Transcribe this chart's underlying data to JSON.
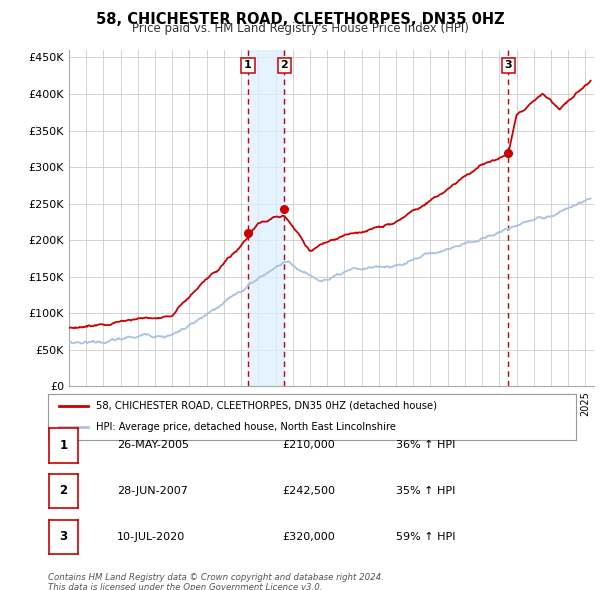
{
  "title": "58, CHICHESTER ROAD, CLEETHORPES, DN35 0HZ",
  "subtitle": "Price paid vs. HM Land Registry's House Price Index (HPI)",
  "ylabel_ticks": [
    "£0",
    "£50K",
    "£100K",
    "£150K",
    "£200K",
    "£250K",
    "£300K",
    "£350K",
    "£400K",
    "£450K"
  ],
  "ytick_values": [
    0,
    50000,
    100000,
    150000,
    200000,
    250000,
    300000,
    350000,
    400000,
    450000
  ],
  "ylim": [
    0,
    460000
  ],
  "xlim_start": 1995.0,
  "xlim_end": 2025.5,
  "background_color": "#ffffff",
  "plot_bg_color": "#ffffff",
  "grid_color": "#cccccc",
  "sale_color": "#cc0000",
  "hpi_color": "#aac4dd",
  "sale_label": "58, CHICHESTER ROAD, CLEETHORPES, DN35 0HZ (detached house)",
  "hpi_label": "HPI: Average price, detached house, North East Lincolnshire",
  "transactions": [
    {
      "num": 1,
      "date": "26-MAY-2005",
      "price": 210000,
      "price_str": "£210,000",
      "pct": "36%",
      "dir": "↑",
      "year": 2005.4
    },
    {
      "num": 2,
      "date": "28-JUN-2007",
      "price": 242500,
      "price_str": "£242,500",
      "pct": "35%",
      "dir": "↑",
      "year": 2007.5
    },
    {
      "num": 3,
      "date": "10-JUL-2020",
      "price": 320000,
      "price_str": "£320,000",
      "pct": "59%",
      "dir": "↑",
      "year": 2020.53
    }
  ],
  "footnote1": "Contains HM Land Registry data © Crown copyright and database right 2024.",
  "footnote2": "This data is licensed under the Open Government Licence v3.0.",
  "shade_region": [
    2005.4,
    2007.5
  ]
}
